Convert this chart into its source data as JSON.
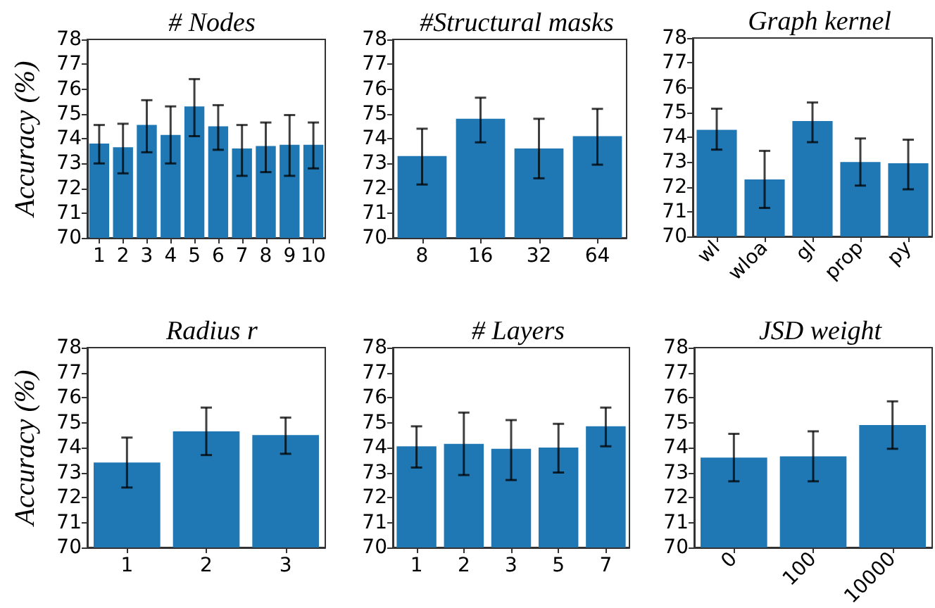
{
  "chart_data": [
    {
      "type": "bar",
      "title": "# Nodes",
      "ylabel": "Accuracy (%)",
      "categories": [
        "1",
        "2",
        "3",
        "4",
        "5",
        "6",
        "7",
        "8",
        "9",
        "10"
      ],
      "values": [
        73.8,
        73.65,
        74.55,
        74.15,
        75.3,
        74.5,
        73.6,
        73.7,
        73.75,
        73.75
      ],
      "errors": [
        [
          73.0,
          74.55
        ],
        [
          72.6,
          74.6
        ],
        [
          73.45,
          75.55
        ],
        [
          73.0,
          75.3
        ],
        [
          74.1,
          76.4
        ],
        [
          73.55,
          75.35
        ],
        [
          72.5,
          74.55
        ],
        [
          72.65,
          74.65
        ],
        [
          72.5,
          74.95
        ],
        [
          72.8,
          74.65
        ]
      ],
      "color": "#1f77b4",
      "ylim": [
        70,
        78
      ],
      "yticks": [
        70,
        71,
        72,
        73,
        74,
        75,
        76,
        77,
        78
      ],
      "grid": false
    },
    {
      "type": "bar",
      "title": "#Structural masks",
      "categories": [
        "8",
        "16",
        "32",
        "64"
      ],
      "values": [
        73.3,
        74.8,
        73.6,
        74.1
      ],
      "errors": [
        [
          72.15,
          74.4
        ],
        [
          73.85,
          75.65
        ],
        [
          72.4,
          74.8
        ],
        [
          72.95,
          75.2
        ]
      ],
      "color": "#1f77b4",
      "ylim": [
        70,
        78
      ],
      "yticks": [
        70,
        71,
        72,
        73,
        74,
        75,
        76,
        77,
        78
      ],
      "grid": false
    },
    {
      "type": "bar",
      "title": "Graph kernel",
      "categories": [
        "wl",
        "wloa",
        "gl",
        "prop",
        "py"
      ],
      "values": [
        74.3,
        72.3,
        74.65,
        73.0,
        72.95
      ],
      "errors": [
        [
          73.5,
          75.15
        ],
        [
          71.15,
          73.45
        ],
        [
          73.8,
          75.4
        ],
        [
          72.05,
          73.95
        ],
        [
          71.9,
          73.9
        ]
      ],
      "color": "#1f77b4",
      "ylim": [
        70,
        78
      ],
      "yticks": [
        70,
        71,
        72,
        73,
        74,
        75,
        76,
        77,
        78
      ],
      "grid": false
    },
    {
      "type": "bar",
      "title": "Radius r",
      "ylabel": "Accuracy (%)",
      "categories": [
        "1",
        "2",
        "3"
      ],
      "values": [
        73.4,
        74.65,
        74.5
      ],
      "errors": [
        [
          72.4,
          74.4
        ],
        [
          73.7,
          75.6
        ],
        [
          73.75,
          75.2
        ]
      ],
      "color": "#1f77b4",
      "ylim": [
        70,
        78
      ],
      "yticks": [
        70,
        71,
        72,
        73,
        74,
        75,
        76,
        77,
        78
      ],
      "grid": false
    },
    {
      "type": "bar",
      "title": "# Layers",
      "categories": [
        "1",
        "2",
        "3",
        "5",
        "7"
      ],
      "values": [
        74.05,
        74.15,
        73.95,
        74.0,
        74.85
      ],
      "errors": [
        [
          73.2,
          74.85
        ],
        [
          72.9,
          75.4
        ],
        [
          72.7,
          75.1
        ],
        [
          73.0,
          74.95
        ],
        [
          74.05,
          75.6
        ]
      ],
      "color": "#1f77b4",
      "ylim": [
        70,
        78
      ],
      "yticks": [
        70,
        71,
        72,
        73,
        74,
        75,
        76,
        77,
        78
      ],
      "grid": false
    },
    {
      "type": "bar",
      "title": "JSD weight",
      "categories": [
        "0",
        "100",
        "10000"
      ],
      "values": [
        73.6,
        73.65,
        74.9
      ],
      "errors": [
        [
          72.65,
          74.55
        ],
        [
          72.65,
          74.65
        ],
        [
          73.95,
          75.85
        ]
      ],
      "color": "#1f77b4",
      "ylim": [
        70,
        78
      ],
      "yticks": [
        70,
        71,
        72,
        73,
        74,
        75,
        76,
        77,
        78
      ],
      "grid": false
    }
  ]
}
